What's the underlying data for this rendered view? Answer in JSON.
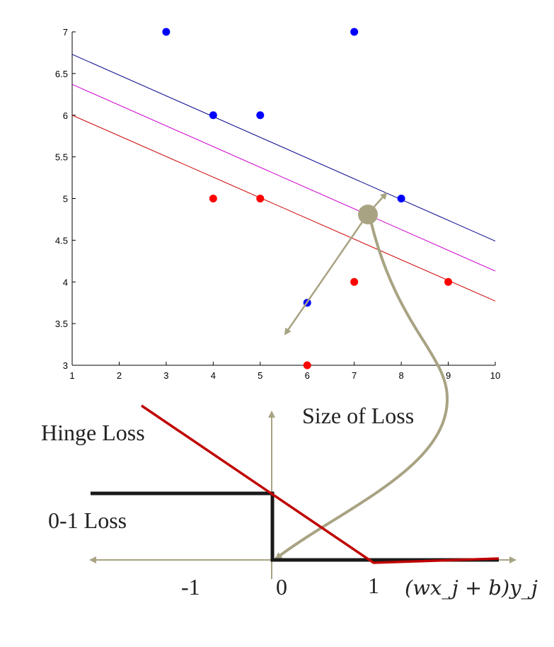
{
  "colors": {
    "blue": "#0000ff",
    "red": "#ff0000",
    "magenta": "#cc00cc",
    "line_blue": "#00008b",
    "line_red": "#cc0000",
    "olive": "#a8a383",
    "loss_red": "#c00000",
    "loss_black": "#1a1a1a"
  },
  "chart_data": {
    "type": "scatter",
    "xlim": [
      1,
      10
    ],
    "ylim": [
      3,
      7
    ],
    "xticks": [
      "1",
      "2",
      "3",
      "4",
      "5",
      "6",
      "7",
      "8",
      "9",
      "10"
    ],
    "yticks": [
      "3",
      "3.5",
      "4",
      "4.5",
      "5",
      "5.5",
      "6",
      "6.5",
      "7"
    ],
    "series": [
      {
        "color": "blue",
        "points": [
          [
            3,
            7
          ],
          [
            7,
            7
          ],
          [
            4,
            6
          ],
          [
            5,
            6
          ],
          [
            8,
            5
          ],
          [
            6,
            3.75
          ]
        ]
      },
      {
        "color": "red",
        "points": [
          [
            4,
            5
          ],
          [
            5,
            5
          ],
          [
            7,
            4
          ],
          [
            9,
            4
          ],
          [
            6,
            3
          ]
        ]
      }
    ],
    "lines": [
      {
        "color": "line_blue",
        "from": [
          1,
          6.73
        ],
        "to": [
          10,
          4.49
        ]
      },
      {
        "color": "magenta",
        "from": [
          1,
          6.37
        ],
        "to": [
          10,
          4.13
        ]
      },
      {
        "color": "line_red",
        "from": [
          1,
          6.0
        ],
        "to": [
          10,
          3.77
        ]
      }
    ]
  },
  "loss_diagram": {
    "hinge_label": "Hinge Loss",
    "zero_one_label": "0-1 Loss",
    "size_label": "Size of Loss",
    "tick_minus_one": "-1",
    "tick_zero": "0",
    "tick_one": "1",
    "axis_label": "(wx_j + b)y_j"
  }
}
